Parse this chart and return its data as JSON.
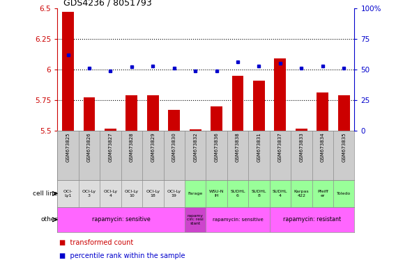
{
  "title": "GDS4236 / 8051793",
  "samples": [
    "GSM673825",
    "GSM673826",
    "GSM673827",
    "GSM673828",
    "GSM673829",
    "GSM673830",
    "GSM673832",
    "GSM673836",
    "GSM673838",
    "GSM673831",
    "GSM673837",
    "GSM673833",
    "GSM673834",
    "GSM673835"
  ],
  "red_values": [
    6.47,
    5.77,
    5.52,
    5.79,
    5.79,
    5.67,
    5.51,
    5.7,
    5.95,
    5.91,
    6.09,
    5.52,
    5.81,
    5.79
  ],
  "blue_values": [
    62,
    51,
    49,
    52,
    53,
    51,
    49,
    49,
    56,
    53,
    55,
    51,
    53,
    51
  ],
  "ylim_left": [
    5.5,
    6.5
  ],
  "ylim_right": [
    0,
    100
  ],
  "yticks_left": [
    5.5,
    5.75,
    6.0,
    6.25,
    6.5
  ],
  "yticks_right": [
    0,
    25,
    50,
    75,
    100
  ],
  "ytick_labels_left": [
    "5.5",
    "5.75",
    "6",
    "6.25",
    "6.5"
  ],
  "ytick_labels_right": [
    "0",
    "25",
    "50",
    "75",
    "100%"
  ],
  "cell_lines": [
    "OCI-\nLy1",
    "OCI-Ly\n3",
    "OCI-Ly\n4",
    "OCI-Ly\n10",
    "OCI-Ly\n18",
    "OCI-Ly\n19",
    "Farage",
    "WSU-N\nIH",
    "SUDHL\n6",
    "SUDHL\n8",
    "SUDHL\n4",
    "Karpas\n422",
    "Pfeiff\ner",
    "Toledo"
  ],
  "cell_line_colors": [
    "#dddddd",
    "#dddddd",
    "#dddddd",
    "#dddddd",
    "#dddddd",
    "#dddddd",
    "#99ff99",
    "#99ff99",
    "#99ff99",
    "#99ff99",
    "#99ff99",
    "#99ff99",
    "#99ff99",
    "#99ff99"
  ],
  "other_groups": [
    {
      "label": "rapamycin: sensitive",
      "start": 0,
      "end": 5,
      "color": "#ff66ff",
      "fontsize": 8
    },
    {
      "label": "rapamy\ncin: resi\nstant",
      "start": 6,
      "end": 6,
      "color": "#cc44cc",
      "fontsize": 6
    },
    {
      "label": "rapamycin: sensitive",
      "start": 7,
      "end": 9,
      "color": "#ff66ff",
      "fontsize": 7
    },
    {
      "label": "rapamycin: resistant",
      "start": 10,
      "end": 13,
      "color": "#ff66ff",
      "fontsize": 8
    }
  ],
  "bar_color": "#cc0000",
  "dot_color": "#0000cc",
  "bg_color": "#ffffff",
  "left_axis_color": "#cc0000",
  "right_axis_color": "#0000cc",
  "sample_bg": "#cccccc",
  "legend_red_text": "transformed count",
  "legend_blue_text": "percentile rank within the sample",
  "cell_line_label": "cell line",
  "other_label": "other"
}
